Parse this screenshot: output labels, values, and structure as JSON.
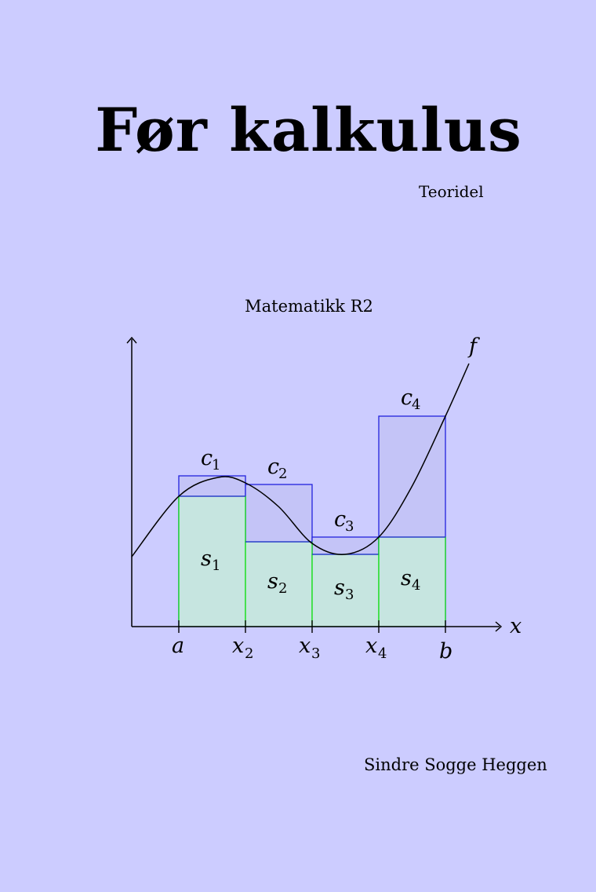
{
  "colors": {
    "background": "#ccccff",
    "lower_fill": "#c6e5e0",
    "lower_stroke": "#00dd00",
    "upper_fill": "#c4c4f7",
    "upper_stroke": "#2222dd",
    "ink": "#000000"
  },
  "cover": {
    "title": "Før kalkulus",
    "subtitle": "Teoridel",
    "course": "Matematikk R2",
    "author": "Sindre Sogge Heggen"
  },
  "figure": {
    "function_label": "f",
    "x_axis_label": "x",
    "tick_labels": [
      {
        "main": "a",
        "sub": ""
      },
      {
        "main": "x",
        "sub": "2"
      },
      {
        "main": "x",
        "sub": "3"
      },
      {
        "main": "x",
        "sub": "4"
      },
      {
        "main": "b",
        "sub": ""
      }
    ],
    "upper_labels": [
      {
        "main": "c",
        "sub": "1"
      },
      {
        "main": "c",
        "sub": "2"
      },
      {
        "main": "c",
        "sub": "3"
      },
      {
        "main": "c",
        "sub": "4"
      }
    ],
    "lower_labels": [
      {
        "main": "s",
        "sub": "1"
      },
      {
        "main": "s",
        "sub": "2"
      },
      {
        "main": "s",
        "sub": "3"
      },
      {
        "main": "s",
        "sub": "4"
      }
    ]
  }
}
